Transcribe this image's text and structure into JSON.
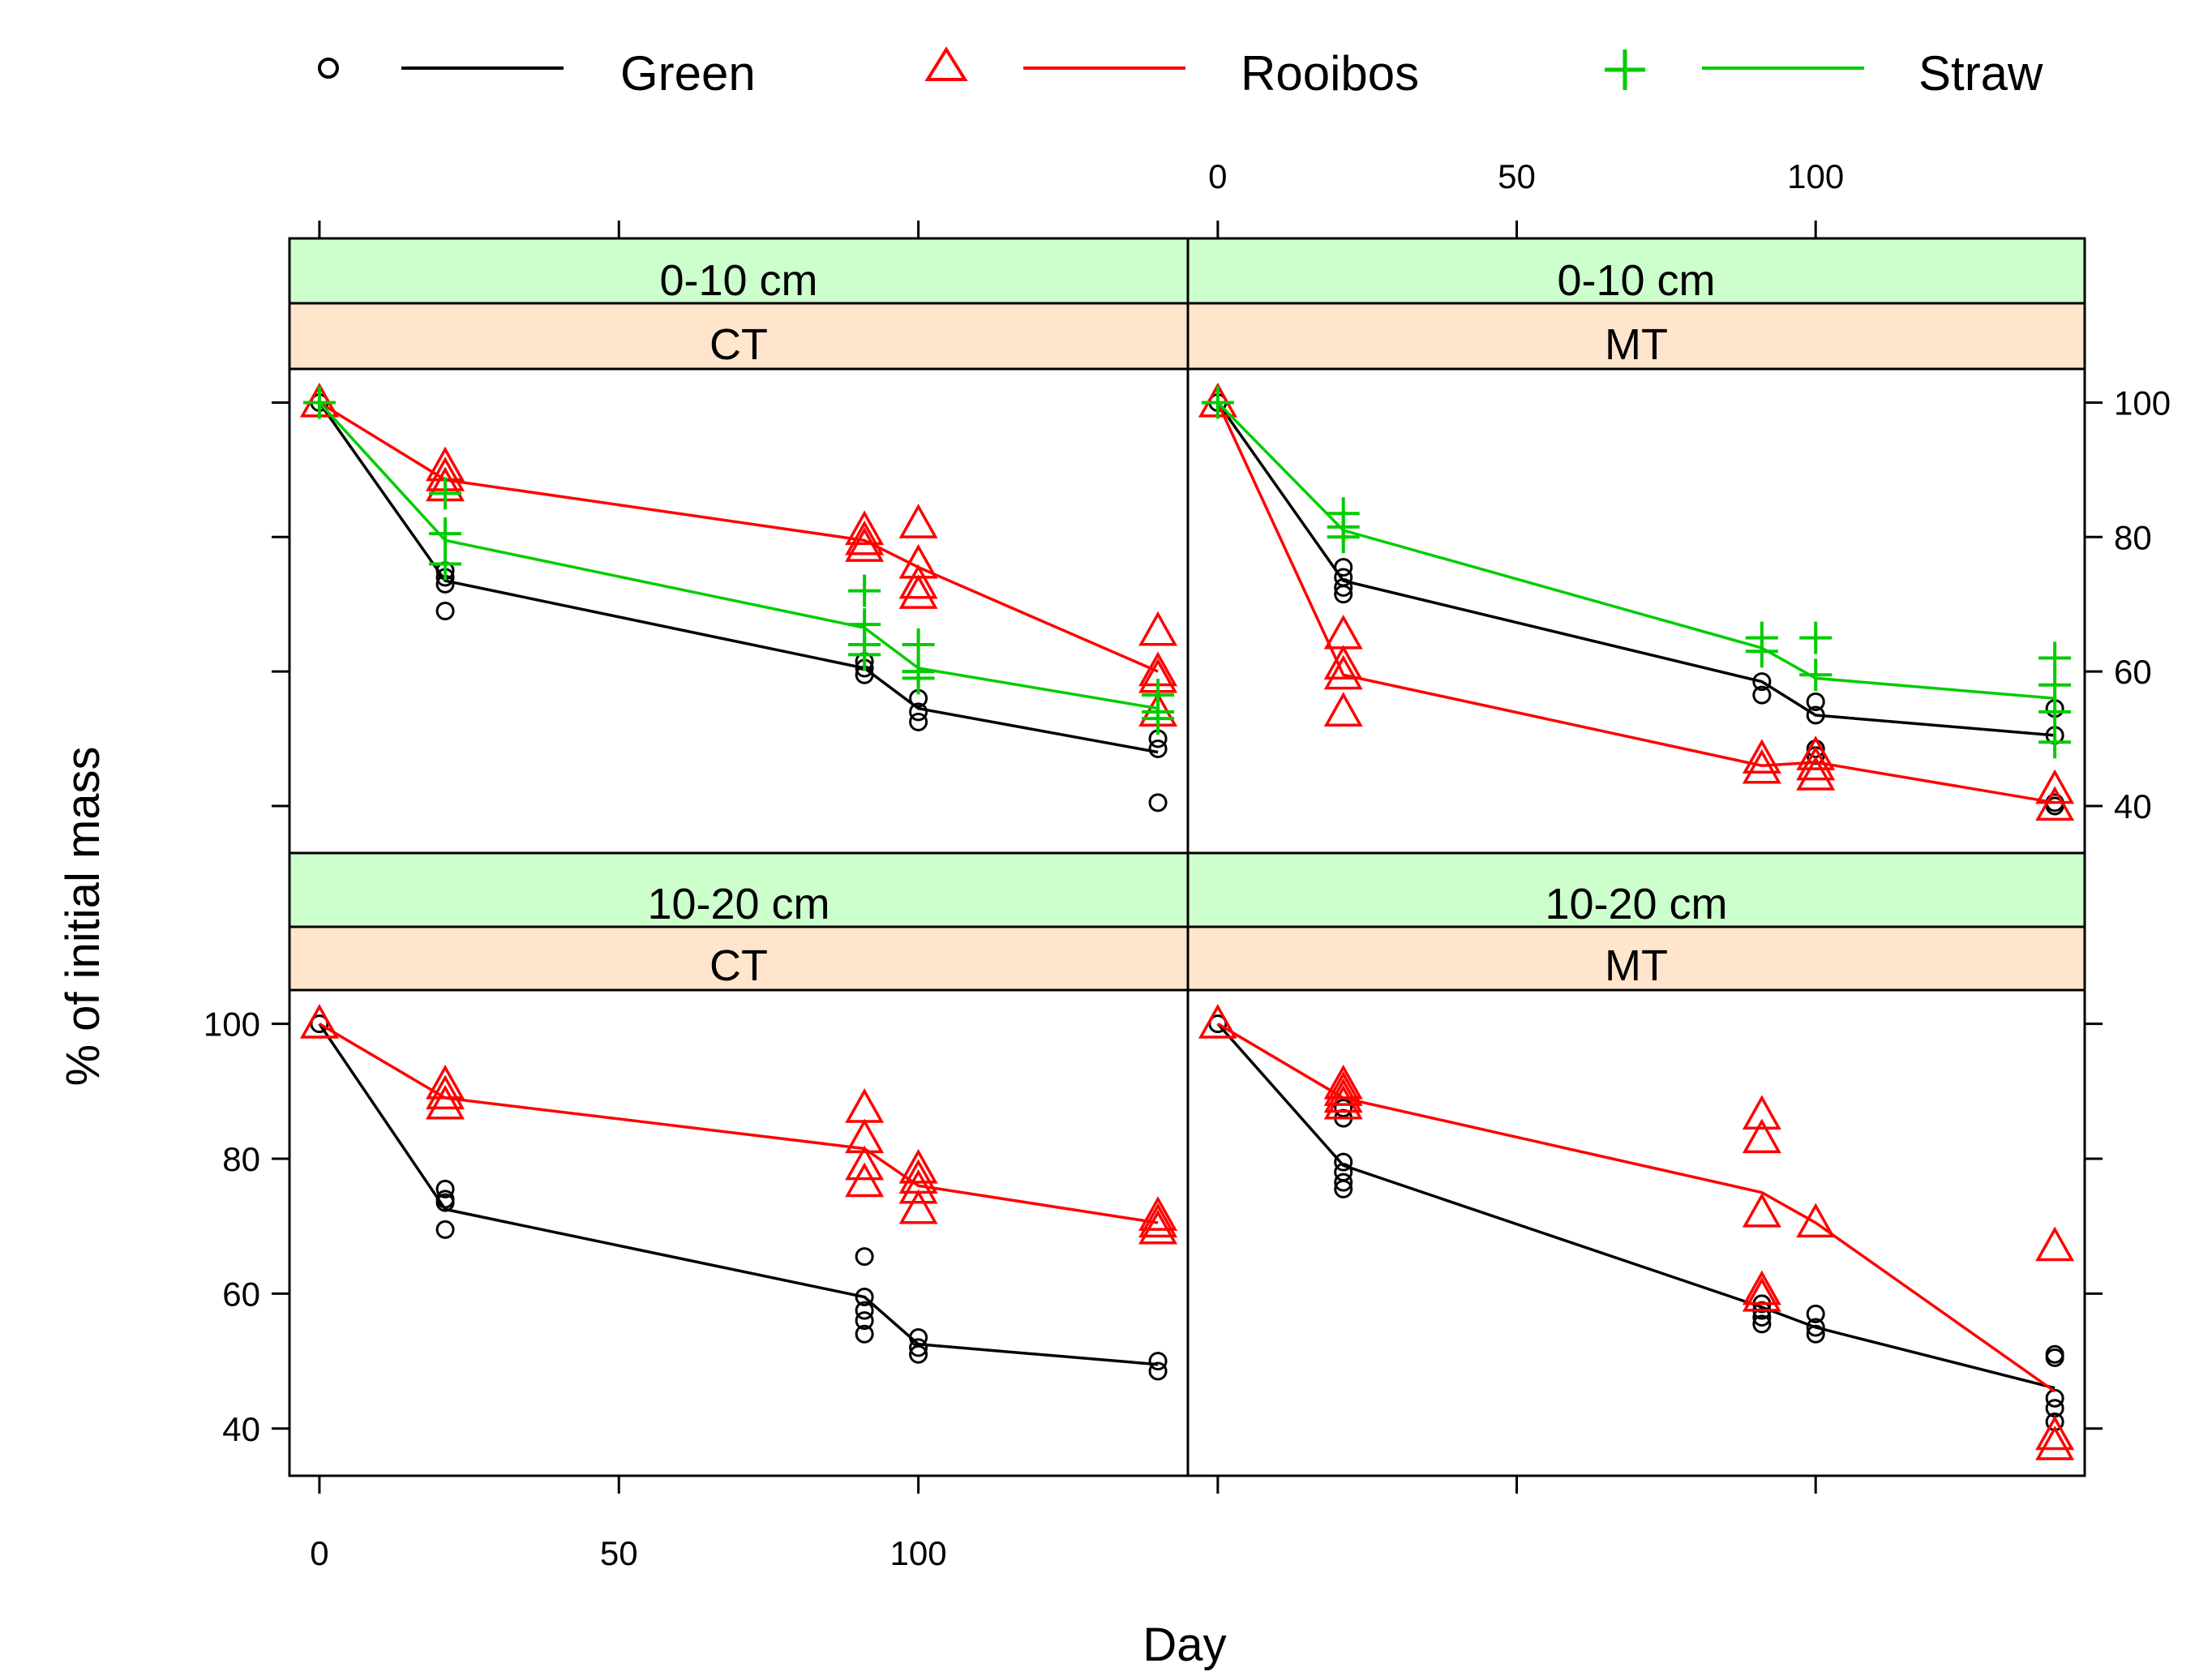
{
  "chart_data": {
    "type": "scatter",
    "xlabel": "Day",
    "ylabel": "% of initial mass",
    "xlim": [
      -5,
      145
    ],
    "ylim": [
      33,
      105
    ],
    "x_ticks": [
      0,
      50,
      100
    ],
    "y_ticks": [
      40,
      60,
      80,
      100
    ],
    "legend_position": "top",
    "series_styles": {
      "Green": {
        "color": "#000000",
        "marker": "circle"
      },
      "Rooibos": {
        "color": "#ff0000",
        "marker": "triangle"
      },
      "Straw": {
        "color": "#00cc00",
        "marker": "plus"
      }
    },
    "legend": [
      {
        "name": "Green",
        "color": "#000000",
        "marker": "circle"
      },
      {
        "name": "Rooibos",
        "color": "#ff0000",
        "marker": "triangle"
      },
      {
        "name": "Straw",
        "color": "#00cc00",
        "marker": "plus"
      }
    ],
    "panels": [
      {
        "depth": "0-10 cm",
        "tillage": "CT",
        "series": [
          {
            "name": "Green",
            "line": [
              [
                0,
                100
              ],
              [
                21,
                73.5
              ],
              [
                91,
                60.5
              ],
              [
                100,
                54.5
              ],
              [
                140,
                48
              ]
            ],
            "points": [
              [
                0,
                100
              ],
              [
                21,
                75
              ],
              [
                21,
                74
              ],
              [
                21,
                73
              ],
              [
                21,
                69
              ],
              [
                91,
                61.5
              ],
              [
                91,
                60.5
              ],
              [
                91,
                59.5
              ],
              [
                100,
                56
              ],
              [
                100,
                54
              ],
              [
                100,
                52.5
              ],
              [
                140,
                50
              ],
              [
                140,
                48.5
              ],
              [
                140,
                40.5
              ]
            ]
          },
          {
            "name": "Rooibos",
            "line": [
              [
                0,
                100
              ],
              [
                21,
                88.5
              ],
              [
                91,
                79.5
              ],
              [
                100,
                75.5
              ],
              [
                140,
                60
              ]
            ],
            "points": [
              [
                0,
                100
              ],
              [
                21,
                90.5
              ],
              [
                21,
                89
              ],
              [
                21,
                87.5
              ],
              [
                91,
                81
              ],
              [
                91,
                79.5
              ],
              [
                91,
                78.5
              ],
              [
                100,
                82
              ],
              [
                100,
                76
              ],
              [
                100,
                73
              ],
              [
                100,
                71.5
              ],
              [
                140,
                66
              ],
              [
                140,
                60
              ],
              [
                140,
                59
              ],
              [
                140,
                54
              ]
            ]
          },
          {
            "name": "Straw",
            "line": [
              [
                0,
                100
              ],
              [
                21,
                79.5
              ],
              [
                91,
                66.5
              ],
              [
                100,
                60.5
              ],
              [
                140,
                54.5
              ]
            ],
            "points": [
              [
                0,
                100
              ],
              [
                21,
                86.5
              ],
              [
                21,
                80.5
              ],
              [
                21,
                76
              ],
              [
                91,
                72
              ],
              [
                91,
                67
              ],
              [
                91,
                64
              ],
              [
                91,
                62.5
              ],
              [
                100,
                64
              ],
              [
                100,
                60
              ],
              [
                100,
                59
              ],
              [
                140,
                56.5
              ],
              [
                140,
                54
              ],
              [
                140,
                53
              ]
            ]
          }
        ]
      },
      {
        "depth": "0-10 cm",
        "tillage": "MT",
        "series": [
          {
            "name": "Green",
            "line": [
              [
                0,
                100
              ],
              [
                21,
                73.5
              ],
              [
                91,
                58.5
              ],
              [
                100,
                53.5
              ],
              [
                140,
                50.5
              ]
            ],
            "points": [
              [
                0,
                100
              ],
              [
                21,
                75.5
              ],
              [
                21,
                74
              ],
              [
                21,
                72.5
              ],
              [
                21,
                71.5
              ],
              [
                91,
                58.5
              ],
              [
                91,
                56.5
              ],
              [
                100,
                55.5
              ],
              [
                100,
                53.5
              ],
              [
                100,
                48.5
              ],
              [
                100,
                47.5
              ],
              [
                140,
                54.5
              ],
              [
                140,
                50.5
              ],
              [
                140,
                40.5
              ],
              [
                140,
                40
              ]
            ]
          },
          {
            "name": "Rooibos",
            "line": [
              [
                0,
                100
              ],
              [
                21,
                59.5
              ],
              [
                91,
                46
              ],
              [
                100,
                46.5
              ],
              [
                140,
                40.5
              ]
            ],
            "points": [
              [
                0,
                100
              ],
              [
                21,
                65.5
              ],
              [
                21,
                61
              ],
              [
                21,
                59.5
              ],
              [
                21,
                54
              ],
              [
                91,
                47
              ],
              [
                91,
                45.5
              ],
              [
                100,
                47.5
              ],
              [
                100,
                46
              ],
              [
                100,
                44.5
              ],
              [
                140,
                42.5
              ],
              [
                140,
                40
              ]
            ]
          },
          {
            "name": "Straw",
            "line": [
              [
                0,
                100
              ],
              [
                21,
                81
              ],
              [
                91,
                63.5
              ],
              [
                100,
                59
              ],
              [
                140,
                56
              ]
            ],
            "points": [
              [
                0,
                100
              ],
              [
                21,
                83.5
              ],
              [
                21,
                81.5
              ],
              [
                21,
                80
              ],
              [
                91,
                65
              ],
              [
                91,
                63
              ],
              [
                100,
                65
              ],
              [
                100,
                59.5
              ],
              [
                140,
                62
              ],
              [
                140,
                58
              ],
              [
                140,
                54
              ],
              [
                140,
                49.5
              ]
            ]
          }
        ]
      },
      {
        "depth": "10-20 cm",
        "tillage": "CT",
        "series": [
          {
            "name": "Green",
            "line": [
              [
                0,
                100
              ],
              [
                21,
                72.5
              ],
              [
                91,
                59.5
              ],
              [
                100,
                52.5
              ],
              [
                140,
                49.5
              ]
            ],
            "points": [
              [
                0,
                100
              ],
              [
                21,
                75.5
              ],
              [
                21,
                74
              ],
              [
                21,
                73.5
              ],
              [
                21,
                69.5
              ],
              [
                91,
                65.5
              ],
              [
                91,
                59.5
              ],
              [
                91,
                57.5
              ],
              [
                91,
                56
              ],
              [
                91,
                54
              ],
              [
                100,
                53.5
              ],
              [
                100,
                52
              ],
              [
                100,
                51
              ],
              [
                140,
                50
              ],
              [
                140,
                48.5
              ]
            ]
          },
          {
            "name": "Rooibos",
            "line": [
              [
                0,
                100
              ],
              [
                21,
                89
              ],
              [
                91,
                81.5
              ],
              [
                100,
                76
              ],
              [
                140,
                70.5
              ]
            ],
            "points": [
              [
                0,
                100
              ],
              [
                21,
                91
              ],
              [
                21,
                89.5
              ],
              [
                21,
                88
              ],
              [
                91,
                87.5
              ],
              [
                91,
                83
              ],
              [
                91,
                79
              ],
              [
                91,
                76.5
              ],
              [
                100,
                78.5
              ],
              [
                100,
                77
              ],
              [
                100,
                75.5
              ],
              [
                100,
                72.5
              ],
              [
                140,
                71.5
              ],
              [
                140,
                70.5
              ],
              [
                140,
                69.5
              ]
            ]
          }
        ]
      },
      {
        "depth": "10-20 cm",
        "tillage": "MT",
        "series": [
          {
            "name": "Green",
            "line": [
              [
                0,
                100
              ],
              [
                21,
                79
              ],
              [
                91,
                58
              ],
              [
                100,
                55
              ],
              [
                140,
                46
              ]
            ],
            "points": [
              [
                0,
                100
              ],
              [
                21,
                87.5
              ],
              [
                21,
                86
              ],
              [
                21,
                79.5
              ],
              [
                21,
                78
              ],
              [
                21,
                76.5
              ],
              [
                21,
                75.5
              ],
              [
                91,
                58.5
              ],
              [
                91,
                57.5
              ],
              [
                91,
                56.5
              ],
              [
                91,
                55.5
              ],
              [
                100,
                57
              ],
              [
                100,
                55
              ],
              [
                100,
                54
              ],
              [
                140,
                51
              ],
              [
                140,
                50.5
              ],
              [
                140,
                44.5
              ],
              [
                140,
                43
              ],
              [
                140,
                41
              ]
            ]
          },
          {
            "name": "Rooibos",
            "line": [
              [
                0,
                100
              ],
              [
                21,
                89
              ],
              [
                91,
                75
              ],
              [
                100,
                70.5
              ],
              [
                140,
                45.5
              ]
            ],
            "points": [
              [
                0,
                100
              ],
              [
                21,
                91
              ],
              [
                21,
                90
              ],
              [
                21,
                89
              ],
              [
                21,
                88
              ],
              [
                91,
                86.5
              ],
              [
                91,
                83
              ],
              [
                91,
                72
              ],
              [
                91,
                60.5
              ],
              [
                91,
                59.5
              ],
              [
                100,
                70.5
              ],
              [
                140,
                67
              ],
              [
                140,
                39
              ],
              [
                140,
                37.5
              ]
            ]
          }
        ]
      }
    ]
  }
}
